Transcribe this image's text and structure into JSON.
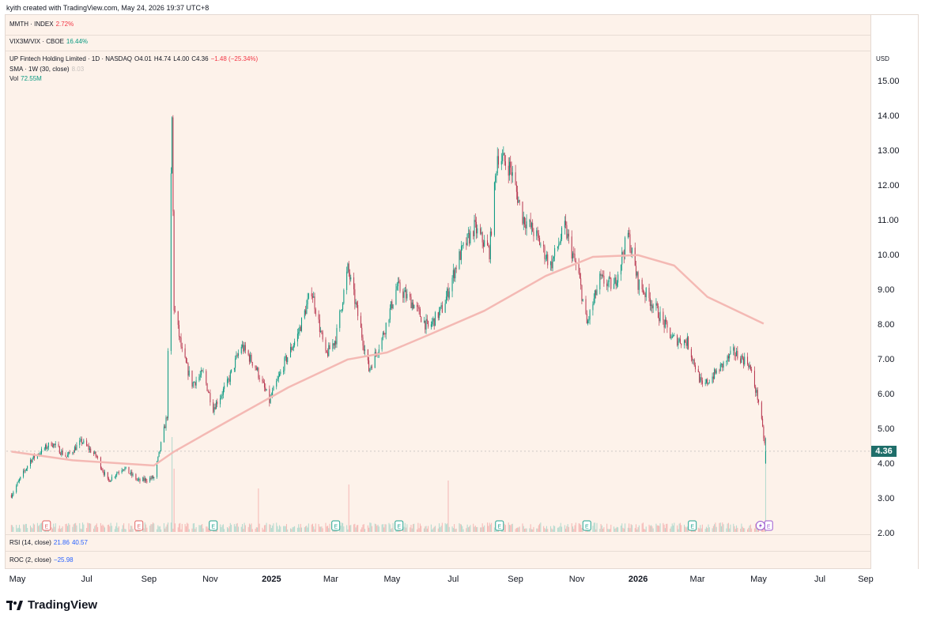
{
  "header": {
    "text": "kyith created with TradingView.com, May 24, 2026 19:37 UTC+8"
  },
  "legend": {
    "mmth": {
      "label": "MMTH · INDEX",
      "value": "2.72%"
    },
    "vix": {
      "label": "VIX3M/VIX · CBOE",
      "value": "16.44%"
    },
    "symbol": {
      "name": "UP Fintech Holding Limited · 1D · NASDAQ",
      "o": "O4.01",
      "h": "H4.74",
      "l": "L4.00",
      "c": "C4.36",
      "chg": "−1.48 (−25.34%)"
    },
    "sma": {
      "label": "SMA · 1W (30, close)",
      "value": "8.03"
    },
    "vol": {
      "label": "Vol",
      "value": "72.55M"
    },
    "rsi": {
      "label": "RSI (14, close)",
      "v1": "21.86",
      "v2": "40.57"
    },
    "roc": {
      "label": "ROC (2, close)",
      "value": "−25.98"
    }
  },
  "axis": {
    "currency": "USD",
    "last_price": "4.36"
  },
  "brand": {
    "name": "TradingView"
  },
  "colors": {
    "up": "#089981",
    "down": "#b8364f",
    "sma": "#f4b9b4",
    "badge": "#1f6e6a",
    "bg": "#fdf2ea"
  },
  "chart_data": {
    "type": "candlestick",
    "title": "UP Fintech Holding Limited · 1D · NASDAQ",
    "ylabel": "USD",
    "ylim": [
      2.0,
      15.0
    ],
    "y_ticks": [
      "15.00",
      "14.00",
      "13.00",
      "12.00",
      "11.00",
      "10.00",
      "9.00",
      "8.00",
      "7.00",
      "6.00",
      "5.00",
      "4.00",
      "3.00",
      "2.00"
    ],
    "x_ticks": [
      "May",
      "Jul",
      "Sep",
      "Nov",
      "2025",
      "Mar",
      "May",
      "Jul",
      "Sep",
      "Nov",
      "2026",
      "Mar",
      "May",
      "Jul",
      "Sep"
    ],
    "x_ticks_bold": [
      "2025",
      "2026"
    ],
    "price_path": [
      [
        "2024-05-01",
        3.1
      ],
      [
        "2024-05-20",
        4.1
      ],
      [
        "2024-06-10",
        4.6
      ],
      [
        "2024-06-25",
        4.2
      ],
      [
        "2024-07-10",
        4.65
      ],
      [
        "2024-07-25",
        4.2
      ],
      [
        "2024-08-05",
        3.5
      ],
      [
        "2024-08-20",
        3.9
      ],
      [
        "2024-09-05",
        3.5
      ],
      [
        "2024-09-20",
        3.6
      ],
      [
        "2024-09-26",
        4.4
      ],
      [
        "2024-10-03",
        5.4
      ],
      [
        "2024-10-08",
        13.9
      ],
      [
        "2024-10-10",
        8.5
      ],
      [
        "2024-10-18",
        7.2
      ],
      [
        "2024-10-28",
        6.3
      ],
      [
        "2024-11-08",
        6.6
      ],
      [
        "2024-11-18",
        5.6
      ],
      [
        "2024-12-02",
        6.3
      ],
      [
        "2024-12-16",
        7.4
      ],
      [
        "2024-12-30",
        6.8
      ],
      [
        "2025-01-13",
        5.8
      ],
      [
        "2025-01-28",
        6.9
      ],
      [
        "2025-02-10",
        7.7
      ],
      [
        "2025-02-24",
        9.0
      ],
      [
        "2025-03-10",
        7.1
      ],
      [
        "2025-03-20",
        7.6
      ],
      [
        "2025-04-01",
        9.6
      ],
      [
        "2025-04-08",
        8.7
      ],
      [
        "2025-04-22",
        6.7
      ],
      [
        "2025-05-05",
        7.6
      ],
      [
        "2025-05-20",
        9.1
      ],
      [
        "2025-06-05",
        8.6
      ],
      [
        "2025-06-20",
        7.9
      ],
      [
        "2025-07-05",
        8.5
      ],
      [
        "2025-07-20",
        9.9
      ],
      [
        "2025-08-05",
        10.8
      ],
      [
        "2025-08-20",
        10.1
      ],
      [
        "2025-08-28",
        12.9
      ],
      [
        "2025-09-10",
        12.5
      ],
      [
        "2025-09-22",
        11.1
      ],
      [
        "2025-10-05",
        10.6
      ],
      [
        "2025-10-20",
        9.7
      ],
      [
        "2025-11-03",
        10.8
      ],
      [
        "2025-11-17",
        9.4
      ],
      [
        "2025-11-25",
        8.0
      ],
      [
        "2025-12-08",
        9.3
      ],
      [
        "2025-12-22",
        9.1
      ],
      [
        "2026-01-05",
        10.6
      ],
      [
        "2026-01-15",
        9.2
      ],
      [
        "2026-02-01",
        8.5
      ],
      [
        "2026-02-18",
        7.6
      ],
      [
        "2026-03-05",
        7.5
      ],
      [
        "2026-03-20",
        6.2
      ],
      [
        "2026-04-05",
        6.7
      ],
      [
        "2026-04-20",
        7.2
      ],
      [
        "2026-05-05",
        6.9
      ],
      [
        "2026-05-15",
        5.8
      ],
      [
        "2026-05-22",
        4.36
      ]
    ],
    "sma_path": [
      [
        "2024-05-01",
        4.35
      ],
      [
        "2024-07-01",
        4.1
      ],
      [
        "2024-09-20",
        3.95
      ],
      [
        "2024-10-10",
        4.35
      ],
      [
        "2024-12-01",
        5.2
      ],
      [
        "2025-02-01",
        6.2
      ],
      [
        "2025-04-01",
        7.0
      ],
      [
        "2025-05-10",
        7.2
      ],
      [
        "2025-06-20",
        7.7
      ],
      [
        "2025-08-15",
        8.4
      ],
      [
        "2025-10-15",
        9.4
      ],
      [
        "2025-12-01",
        9.95
      ],
      [
        "2026-01-15",
        10.0
      ],
      [
        "2026-02-20",
        9.7
      ],
      [
        "2026-03-25",
        8.8
      ],
      [
        "2026-05-20",
        8.03
      ]
    ],
    "volume_spikes": [
      [
        "2024-10-08",
        1.0
      ],
      [
        "2024-10-10",
        0.6
      ],
      [
        "2025-01-02",
        0.35
      ],
      [
        "2025-04-02",
        0.4
      ],
      [
        "2025-07-10",
        0.45
      ],
      [
        "2026-05-22",
        1.0
      ]
    ]
  }
}
